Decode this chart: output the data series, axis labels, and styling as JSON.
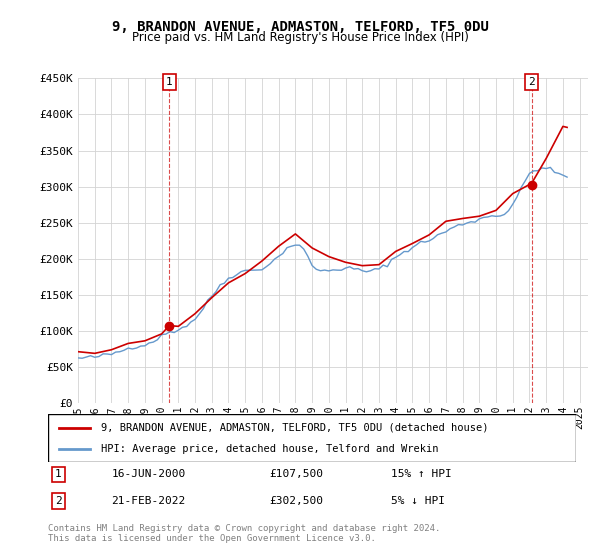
{
  "title": "9, BRANDON AVENUE, ADMASTON, TELFORD, TF5 0DU",
  "subtitle": "Price paid vs. HM Land Registry's House Price Index (HPI)",
  "ylabel_ticks": [
    "£0",
    "£50K",
    "£100K",
    "£150K",
    "£200K",
    "£250K",
    "£300K",
    "£350K",
    "£400K",
    "£450K"
  ],
  "ylim": [
    0,
    450000
  ],
  "xlim_start": 1995.0,
  "xlim_end": 2025.5,
  "red_color": "#cc0000",
  "blue_color": "#6699cc",
  "dashed_color": "#cc0000",
  "legend_label_red": "9, BRANDON AVENUE, ADMASTON, TELFORD, TF5 0DU (detached house)",
  "legend_label_blue": "HPI: Average price, detached house, Telford and Wrekin",
  "point1_label": "1",
  "point1_date": "16-JUN-2000",
  "point1_price": "£107,500",
  "point1_hpi": "15% ↑ HPI",
  "point1_x": 2000.46,
  "point1_y": 107500,
  "point2_label": "2",
  "point2_date": "21-FEB-2022",
  "point2_price": "£302,500",
  "point2_hpi": "5% ↓ HPI",
  "point2_x": 2022.13,
  "point2_y": 302500,
  "footnote": "Contains HM Land Registry data © Crown copyright and database right 2024.\nThis data is licensed under the Open Government Licence v3.0.",
  "hpi_data": {
    "years": [
      1995.0,
      1995.25,
      1995.5,
      1995.75,
      1996.0,
      1996.25,
      1996.5,
      1996.75,
      1997.0,
      1997.25,
      1997.5,
      1997.75,
      1998.0,
      1998.25,
      1998.5,
      1998.75,
      1999.0,
      1999.25,
      1999.5,
      1999.75,
      2000.0,
      2000.25,
      2000.5,
      2000.75,
      2001.0,
      2001.25,
      2001.5,
      2001.75,
      2002.0,
      2002.25,
      2002.5,
      2002.75,
      2003.0,
      2003.25,
      2003.5,
      2003.75,
      2004.0,
      2004.25,
      2004.5,
      2004.75,
      2005.0,
      2005.25,
      2005.5,
      2005.75,
      2006.0,
      2006.25,
      2006.5,
      2006.75,
      2007.0,
      2007.25,
      2007.5,
      2007.75,
      2008.0,
      2008.25,
      2008.5,
      2008.75,
      2009.0,
      2009.25,
      2009.5,
      2009.75,
      2010.0,
      2010.25,
      2010.5,
      2010.75,
      2011.0,
      2011.25,
      2011.5,
      2011.75,
      2012.0,
      2012.25,
      2012.5,
      2012.75,
      2013.0,
      2013.25,
      2013.5,
      2013.75,
      2014.0,
      2014.25,
      2014.5,
      2014.75,
      2015.0,
      2015.25,
      2015.5,
      2015.75,
      2016.0,
      2016.25,
      2016.5,
      2016.75,
      2017.0,
      2017.25,
      2017.5,
      2017.75,
      2018.0,
      2018.25,
      2018.5,
      2018.75,
      2019.0,
      2019.25,
      2019.5,
      2019.75,
      2020.0,
      2020.25,
      2020.5,
      2020.75,
      2021.0,
      2021.25,
      2021.5,
      2021.75,
      2022.0,
      2022.25,
      2022.5,
      2022.75,
      2023.0,
      2023.25,
      2023.5,
      2023.75,
      2024.0,
      2024.25
    ],
    "values": [
      62000,
      62500,
      63000,
      63500,
      64000,
      65000,
      66000,
      67000,
      68000,
      70000,
      72000,
      74000,
      76000,
      78000,
      79000,
      80000,
      81000,
      83000,
      86000,
      90000,
      93000,
      96000,
      99000,
      100000,
      102000,
      105000,
      108000,
      112000,
      117000,
      124000,
      132000,
      140000,
      148000,
      156000,
      163000,
      168000,
      173000,
      177000,
      180000,
      182000,
      183000,
      184000,
      184500,
      185000,
      187000,
      190000,
      194000,
      198000,
      203000,
      210000,
      215000,
      218000,
      220000,
      218000,
      212000,
      202000,
      192000,
      186000,
      183000,
      183000,
      184000,
      185000,
      186000,
      186000,
      186000,
      187000,
      186000,
      185000,
      183000,
      183000,
      183000,
      184000,
      186000,
      189000,
      193000,
      198000,
      202000,
      206000,
      210000,
      213000,
      216000,
      219000,
      222000,
      224000,
      226000,
      229000,
      232000,
      235000,
      238000,
      241000,
      244000,
      246000,
      248000,
      250000,
      252000,
      253000,
      255000,
      257000,
      258000,
      260000,
      261000,
      260000,
      262000,
      268000,
      276000,
      285000,
      296000,
      308000,
      318000,
      322000,
      325000,
      326000,
      325000,
      323000,
      320000,
      318000,
      316000,
      315000
    ]
  },
  "price_data": {
    "years": [
      2000.46,
      2022.13
    ],
    "values": [
      107500,
      302500
    ],
    "interpolated_years": [
      1995.0,
      1996.0,
      1997.0,
      1998.0,
      1999.0,
      2000.0,
      2000.46,
      2001.0,
      2002.0,
      2003.0,
      2004.0,
      2005.0,
      2006.0,
      2007.0,
      2008.0,
      2009.0,
      2010.0,
      2011.0,
      2012.0,
      2013.0,
      2014.0,
      2015.0,
      2016.0,
      2017.0,
      2018.0,
      2019.0,
      2020.0,
      2021.0,
      2022.13,
      2023.0,
      2024.0,
      2024.25
    ],
    "interpolated_values": [
      68000,
      70000,
      74000,
      82000,
      88000,
      96000,
      107500,
      110000,
      122000,
      145000,
      168000,
      180000,
      196000,
      218000,
      235000,
      218000,
      202000,
      195000,
      190000,
      195000,
      207000,
      221000,
      234000,
      248000,
      256000,
      262000,
      268000,
      295000,
      302500,
      340000,
      385000,
      380000
    ]
  }
}
